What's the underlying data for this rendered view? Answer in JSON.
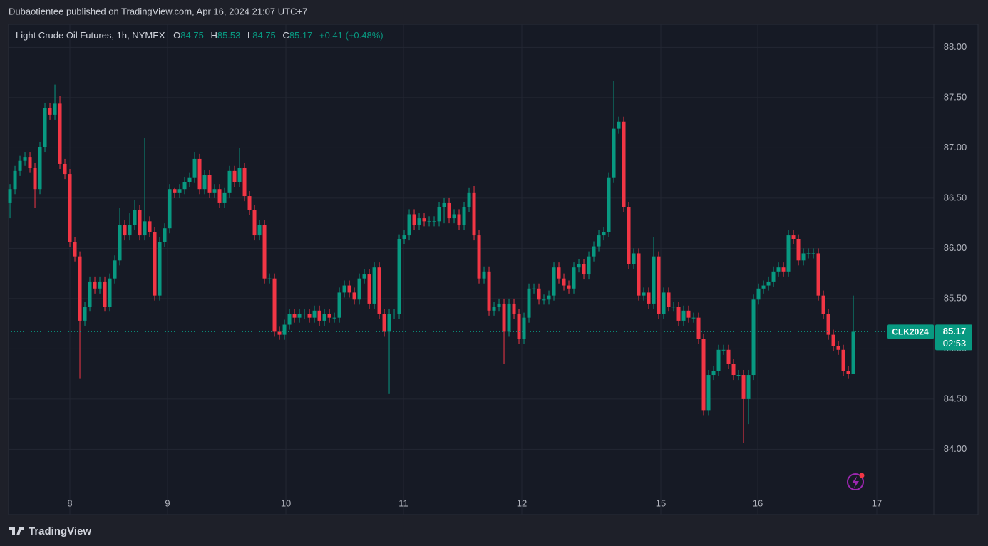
{
  "header": {
    "text": "Dubaotientee published on TradingView.com, Apr 16, 2024 21:07 UTC+7"
  },
  "footer": {
    "brand": "TradingView"
  },
  "chart_data": {
    "type": "candlestick",
    "title": "Light Crude Oil Futures, 1h, NYMEX",
    "ohlc_letters": [
      "O",
      "H",
      "L",
      "C"
    ],
    "change": "+0.41 (+0.48%)",
    "symbol": "CLK2024",
    "countdown": "02:53",
    "up_color": "#089981",
    "down_color": "#f23645",
    "grid": true,
    "xlim": [
      -0.29,
      185.14
    ],
    "xticks": [
      {
        "value": 12,
        "label": "8"
      },
      {
        "value": 31.57,
        "label": "9"
      },
      {
        "value": 55.29,
        "label": "10"
      },
      {
        "value": 78.86,
        "label": "11"
      },
      {
        "value": 102.57,
        "label": "12"
      },
      {
        "value": 130.43,
        "label": "15"
      },
      {
        "value": 149.86,
        "label": "16"
      },
      {
        "value": 173.71,
        "label": "17"
      }
    ],
    "ylim": [
      83.35,
      88.23
    ],
    "yticks": [
      {
        "value": 84,
        "label": "84.00"
      },
      {
        "value": 84.5,
        "label": "84.50"
      },
      {
        "value": 85,
        "label": "85.00"
      },
      {
        "value": 85.5,
        "label": "85.50"
      },
      {
        "value": 86,
        "label": "86.00"
      },
      {
        "value": 86.5,
        "label": "86.50"
      },
      {
        "value": 87,
        "label": "87.00"
      },
      {
        "value": 87.5,
        "label": "87.50"
      },
      {
        "value": 88,
        "label": "88.00"
      }
    ],
    "x": [
      0,
      1,
      2,
      3,
      4,
      5,
      6,
      7,
      8,
      9,
      10,
      11,
      12,
      13,
      14,
      15,
      16,
      17,
      18,
      19,
      20,
      21,
      22,
      23,
      24,
      25,
      26,
      27,
      28,
      29,
      30,
      31,
      32,
      33,
      34,
      35,
      36,
      37,
      38,
      39,
      40,
      41,
      42,
      43,
      44,
      45,
      46,
      47,
      48,
      49,
      50,
      51,
      52,
      53,
      54,
      55,
      56,
      57,
      58,
      59,
      60,
      61,
      62,
      63,
      64,
      65,
      66,
      67,
      68,
      69,
      70,
      71,
      72,
      73,
      74,
      75,
      76,
      77,
      78,
      79,
      80,
      81,
      82,
      83,
      84,
      85,
      86,
      87,
      88,
      89,
      90,
      91,
      92,
      93,
      94,
      95,
      96,
      97,
      98,
      99,
      100,
      101,
      102,
      103,
      104,
      105,
      106,
      107,
      108,
      109,
      110,
      111,
      112,
      113,
      114,
      115,
      116,
      117,
      118,
      119,
      120,
      121,
      122,
      123,
      124,
      125,
      126,
      127,
      128,
      129,
      130,
      131,
      132,
      133,
      134,
      135,
      136,
      137,
      138,
      139,
      140,
      141,
      142,
      143,
      144,
      145,
      146,
      147,
      148,
      149,
      150,
      151,
      152,
      153,
      154,
      155,
      156,
      157,
      158,
      159,
      160,
      161,
      162,
      163,
      164,
      165,
      166,
      167,
      168,
      169
    ],
    "open": [
      86.45,
      86.59,
      86.77,
      86.87,
      86.91,
      86.8,
      86.59,
      87.01,
      87.4,
      87.33,
      87.44,
      86.84,
      86.74,
      86.06,
      85.92,
      85.28,
      85.42,
      85.67,
      85.6,
      85.67,
      85.42,
      85.7,
      85.88,
      86.23,
      86.13,
      86.23,
      86.38,
      86.13,
      86.27,
      86.16,
      85.53,
      86.06,
      86.2,
      86.59,
      86.55,
      86.59,
      86.66,
      86.7,
      86.89,
      86.59,
      86.73,
      86.55,
      86.59,
      86.45,
      86.55,
      86.77,
      86.66,
      86.8,
      86.52,
      86.38,
      86.13,
      86.23,
      85.7,
      85.7,
      85.17,
      85.14,
      85.24,
      85.35,
      85.31,
      85.35,
      85.35,
      85.31,
      85.38,
      85.28,
      85.35,
      85.31,
      85.31,
      85.56,
      85.63,
      85.56,
      85.49,
      85.7,
      85.74,
      85.45,
      85.81,
      85.35,
      85.17,
      85.35,
      85.35,
      86.09,
      86.13,
      86.34,
      86.23,
      86.3,
      86.27,
      86.27,
      86.27,
      86.41,
      86.45,
      86.3,
      86.34,
      86.23,
      86.41,
      86.55,
      86.13,
      85.7,
      85.77,
      85.38,
      85.42,
      85.45,
      85.17,
      85.45,
      85.35,
      85.1,
      85.31,
      85.6,
      85.6,
      85.49,
      85.49,
      85.53,
      85.81,
      85.7,
      85.63,
      85.6,
      85.81,
      85.84,
      85.74,
      85.92,
      86.02,
      86.13,
      86.16,
      86.7,
      87.19,
      87.26,
      86.41,
      85.84,
      85.95,
      85.53,
      85.56,
      85.45,
      85.92,
      85.35,
      85.56,
      85.42,
      85.42,
      85.28,
      85.38,
      85.31,
      85.31,
      85.1,
      84.39,
      84.74,
      84.78,
      84.99,
      84.99,
      84.85,
      84.74,
      84.74,
      84.5,
      84.74,
      85.49,
      85.6,
      85.63,
      85.67,
      85.77,
      85.81,
      85.77,
      86.13,
      86.09,
      85.88,
      85.95,
      85.95,
      85.95,
      85.53,
      85.35,
      85.14,
      85.03,
      84.99,
      84.78,
      84.75
    ],
    "high": [
      86.64,
      86.82,
      86.92,
      86.96,
      86.96,
      86.85,
      87.06,
      87.45,
      87.45,
      87.63,
      87.52,
      86.89,
      86.79,
      86.11,
      85.97,
      85.47,
      85.72,
      85.72,
      85.72,
      85.72,
      85.75,
      85.93,
      86.4,
      86.28,
      86.35,
      86.48,
      86.43,
      87.1,
      86.32,
      86.21,
      86.11,
      86.25,
      86.64,
      86.6,
      86.64,
      86.71,
      86.75,
      86.96,
      86.94,
      86.78,
      86.78,
      86.64,
      86.64,
      86.6,
      86.82,
      86.82,
      87.0,
      86.85,
      86.57,
      86.43,
      86.28,
      86.28,
      85.75,
      85.75,
      85.22,
      85.29,
      85.4,
      85.4,
      85.4,
      85.4,
      85.4,
      85.43,
      85.43,
      85.4,
      85.4,
      85.36,
      85.61,
      85.68,
      85.68,
      85.61,
      85.75,
      85.79,
      85.79,
      85.86,
      85.86,
      85.4,
      85.4,
      85.4,
      86.14,
      86.18,
      86.39,
      86.39,
      86.35,
      86.35,
      86.32,
      86.32,
      86.46,
      86.5,
      86.5,
      86.39,
      86.39,
      86.46,
      86.6,
      86.62,
      86.18,
      85.82,
      85.82,
      85.47,
      85.5,
      85.5,
      85.5,
      85.5,
      85.4,
      85.36,
      85.65,
      85.65,
      85.65,
      85.54,
      85.58,
      85.86,
      85.86,
      85.75,
      85.68,
      85.86,
      85.89,
      85.89,
      85.97,
      86.07,
      86.18,
      86.21,
      86.75,
      87.67,
      87.31,
      87.31,
      86.46,
      86.0,
      86.0,
      85.61,
      85.61,
      86.11,
      85.97,
      85.61,
      85.61,
      85.47,
      85.47,
      85.43,
      85.43,
      85.36,
      85.36,
      85.15,
      84.79,
      84.83,
      85.04,
      85.04,
      85.04,
      84.9,
      84.79,
      84.79,
      84.79,
      85.54,
      85.65,
      85.68,
      85.72,
      85.82,
      85.86,
      85.86,
      86.18,
      86.18,
      86.14,
      86.0,
      86.0,
      86.0,
      86.0,
      85.58,
      85.4,
      85.19,
      85.08,
      85.04,
      84.83,
      85.53
    ],
    "low": [
      86.3,
      86.54,
      86.72,
      86.82,
      86.75,
      86.4,
      86.54,
      86.96,
      87.28,
      87.28,
      86.79,
      86.69,
      86.01,
      85.87,
      84.7,
      85.23,
      85.37,
      85.55,
      85.55,
      85.37,
      85.37,
      85.65,
      85.83,
      86.08,
      86.08,
      86.18,
      86.08,
      86.08,
      86.11,
      85.48,
      85.48,
      86.01,
      86.15,
      86.5,
      86.5,
      86.54,
      86.61,
      86.65,
      86.54,
      86.54,
      86.5,
      86.5,
      86.4,
      86.4,
      86.5,
      86.61,
      86.61,
      86.47,
      86.33,
      86.08,
      86.08,
      85.65,
      85.65,
      85.12,
      85.09,
      85.09,
      85.19,
      85.26,
      85.26,
      85.3,
      85.26,
      85.26,
      85.23,
      85.23,
      85.26,
      85.26,
      85.26,
      85.51,
      85.51,
      85.44,
      85.44,
      85.65,
      85.4,
      85.4,
      85.3,
      85.12,
      84.55,
      85.3,
      85.3,
      86.04,
      86.08,
      86.18,
      86.18,
      86.22,
      86.22,
      86.22,
      86.22,
      86.25,
      86.25,
      86.25,
      86.18,
      86.18,
      86.36,
      86.08,
      85.65,
      85.65,
      85.33,
      85.33,
      85.37,
      84.85,
      85.12,
      85.3,
      85.05,
      85.05,
      85.26,
      85.55,
      85.44,
      85.44,
      85.44,
      85.48,
      85.65,
      85.58,
      85.55,
      85.55,
      85.76,
      85.69,
      85.69,
      85.87,
      85.97,
      86.08,
      86.11,
      86.65,
      87.14,
      86.36,
      85.79,
      85.79,
      85.48,
      85.48,
      85.4,
      85.4,
      85.3,
      85.3,
      85.37,
      85.37,
      85.23,
      85.23,
      85.26,
      85.26,
      85.05,
      84.34,
      84.34,
      84.69,
      84.73,
      84.94,
      84.8,
      84.69,
      84.69,
      84.06,
      84.25,
      84.69,
      85.44,
      85.55,
      85.58,
      85.62,
      85.72,
      85.72,
      85.72,
      86.04,
      85.83,
      85.83,
      85.9,
      85.9,
      85.48,
      85.3,
      85.09,
      84.98,
      84.94,
      84.73,
      84.7,
      84.75
    ],
    "close": [
      86.59,
      86.77,
      86.87,
      86.91,
      86.8,
      86.59,
      87.01,
      87.4,
      87.33,
      87.44,
      86.84,
      86.74,
      86.06,
      85.92,
      85.28,
      85.42,
      85.67,
      85.6,
      85.67,
      85.42,
      85.7,
      85.88,
      86.23,
      86.13,
      86.23,
      86.38,
      86.13,
      86.27,
      86.16,
      85.53,
      86.06,
      86.2,
      86.59,
      86.55,
      86.59,
      86.66,
      86.7,
      86.89,
      86.59,
      86.73,
      86.55,
      86.59,
      86.45,
      86.55,
      86.77,
      86.66,
      86.8,
      86.52,
      86.38,
      86.13,
      86.23,
      85.7,
      85.7,
      85.17,
      85.14,
      85.24,
      85.35,
      85.31,
      85.35,
      85.35,
      85.31,
      85.38,
      85.28,
      85.35,
      85.31,
      85.31,
      85.56,
      85.63,
      85.56,
      85.49,
      85.7,
      85.74,
      85.45,
      85.81,
      85.35,
      85.17,
      85.35,
      85.35,
      86.09,
      86.13,
      86.34,
      86.23,
      86.3,
      86.27,
      86.27,
      86.27,
      86.41,
      86.45,
      86.3,
      86.34,
      86.23,
      86.41,
      86.55,
      86.13,
      85.7,
      85.77,
      85.38,
      85.42,
      85.45,
      85.17,
      85.45,
      85.35,
      85.1,
      85.31,
      85.6,
      85.6,
      85.49,
      85.49,
      85.53,
      85.81,
      85.7,
      85.63,
      85.6,
      85.81,
      85.84,
      85.74,
      85.92,
      86.02,
      86.13,
      86.16,
      86.7,
      87.19,
      87.26,
      86.41,
      85.84,
      85.95,
      85.53,
      85.56,
      85.45,
      85.92,
      85.35,
      85.56,
      85.42,
      85.42,
      85.28,
      85.38,
      85.31,
      85.31,
      85.1,
      84.39,
      84.74,
      84.78,
      84.99,
      84.99,
      84.85,
      84.74,
      84.74,
      84.5,
      84.74,
      85.49,
      85.6,
      85.63,
      85.67,
      85.77,
      85.81,
      85.77,
      86.13,
      86.09,
      85.88,
      85.95,
      85.95,
      85.95,
      85.53,
      85.35,
      85.14,
      85.03,
      84.99,
      84.78,
      84.75,
      85.17
    ]
  }
}
